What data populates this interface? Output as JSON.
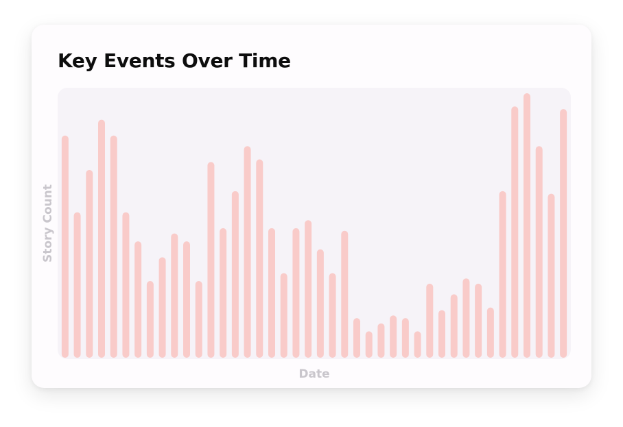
{
  "chart_data": {
    "type": "bar",
    "title": "Key Events Over Time",
    "xlabel": "Date",
    "ylabel": "Story Count",
    "ylim": [
      0,
      100
    ],
    "values": [
      84,
      55,
      71,
      90,
      84,
      55,
      44,
      29,
      38,
      47,
      44,
      29,
      74,
      49,
      63,
      80,
      75,
      49,
      32,
      49,
      52,
      41,
      32,
      48,
      15,
      10,
      13,
      16,
      15,
      10,
      28,
      18,
      24,
      30,
      28,
      19,
      63,
      95,
      100,
      80,
      62,
      94
    ],
    "grid": false,
    "legend": false,
    "bar_color": "#f9cbc9"
  }
}
